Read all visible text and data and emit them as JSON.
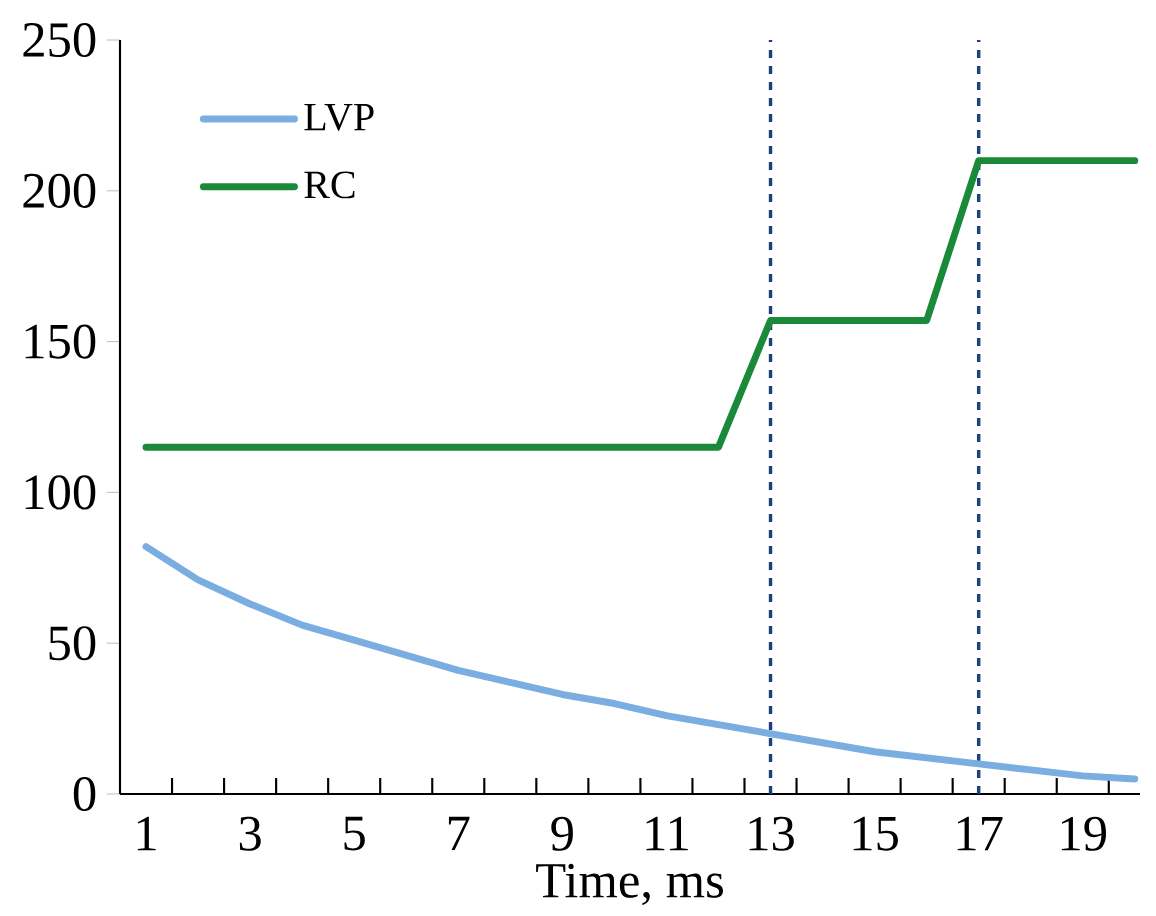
{
  "chart_data": {
    "type": "line",
    "xlabel": "Time, ms",
    "x": [
      1,
      2,
      3,
      4,
      5,
      6,
      7,
      8,
      9,
      10,
      11,
      12,
      13,
      14,
      15,
      16,
      17,
      18,
      19,
      20
    ],
    "series": [
      {
        "name": "LVP",
        "color": "#7aaee0",
        "values": [
          82,
          71,
          63,
          56,
          51,
          46,
          41,
          37,
          33,
          30,
          26,
          23,
          20,
          17,
          14,
          12,
          10,
          8,
          6,
          5
        ]
      },
      {
        "name": "RC",
        "color": "#1a8a3a",
        "x": [
          1,
          12,
          13,
          16,
          17,
          20
        ],
        "values": [
          115,
          115,
          157,
          157,
          210,
          210
        ]
      }
    ],
    "xlim": [
      0.5,
      20.1
    ],
    "ylim": [
      0,
      250
    ],
    "xticks": [
      1,
      3,
      5,
      7,
      9,
      11,
      13,
      15,
      17,
      19,
      {
        "value": 1.5,
        "label": null
      },
      {
        "value": 2.5,
        "label": null
      },
      {
        "value": 3.5,
        "label": null
      },
      {
        "value": 4.5,
        "label": null
      },
      {
        "value": 5.5,
        "label": null
      },
      {
        "value": 6.5,
        "label": null
      },
      {
        "value": 7.5,
        "label": null
      },
      {
        "value": 8.5,
        "label": null
      },
      {
        "value": 9.5,
        "label": null
      },
      {
        "value": 10.5,
        "label": null
      },
      {
        "value": 11.5,
        "label": null
      },
      {
        "value": 12.5,
        "label": null
      },
      {
        "value": 13.5,
        "label": null
      },
      {
        "value": 14.5,
        "label": null
      },
      {
        "value": 15.5,
        "label": null
      },
      {
        "value": 16.5,
        "label": null
      },
      {
        "value": 17.5,
        "label": null
      },
      {
        "value": 18.5,
        "label": null
      },
      {
        "value": 19.5,
        "label": null
      }
    ],
    "yticks": [
      0,
      50,
      100,
      150,
      200,
      250
    ],
    "ref_lines": [
      {
        "axis": "x",
        "value": 13,
        "color": "#1f3f7f",
        "line_style": "dashed"
      },
      {
        "axis": "x",
        "value": 17,
        "color": "#1f3f7f",
        "line_style": "dashed"
      }
    ],
    "legend": "top left",
    "grid": false,
    "marker": "none",
    "line_style": "solid"
  }
}
